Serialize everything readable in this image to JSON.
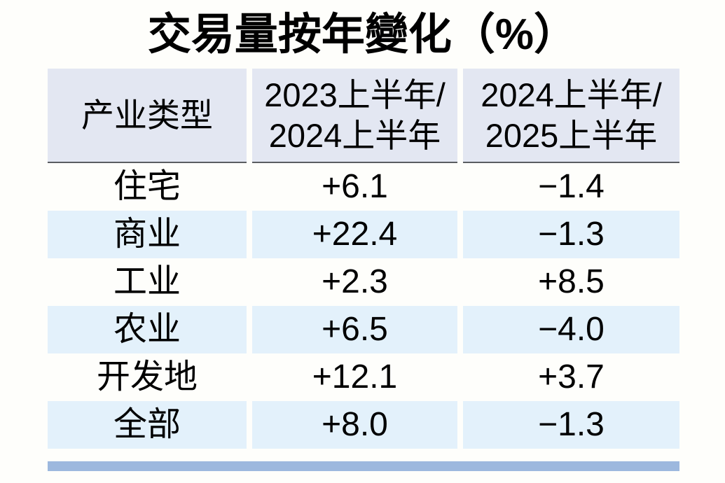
{
  "title": "交易量按年變化（%）",
  "colors": {
    "page_bg": "#fefefb",
    "text": "#000000",
    "header_bg": "#e3e7f2",
    "row_alt_bg": "#e3f1fb",
    "header_border": "#5a5d62",
    "bottom_bar": "#9db8de"
  },
  "table": {
    "header": {
      "col1": "产业类型",
      "col2_line1": "2023上半年/",
      "col2_line2": "2024上半年",
      "col3_line1": "2024上半年/",
      "col3_line2": "2025上半年"
    },
    "rows": [
      {
        "label": "住宅",
        "v1": "+6.1",
        "v2": "−1.4"
      },
      {
        "label": "商业",
        "v1": "+22.4",
        "v2": "−1.3"
      },
      {
        "label": "工业",
        "v1": "+2.3",
        "v2": "+8.5"
      },
      {
        "label": "农业",
        "v1": "+6.5",
        "v2": "−4.0"
      },
      {
        "label": "开发地",
        "v1": "+12.1",
        "v2": "+3.7"
      },
      {
        "label": "全部",
        "v1": "+8.0",
        "v2": "−1.3"
      }
    ]
  },
  "chart_data": {
    "type": "table",
    "title": "交易量按年變化（%）",
    "columns": [
      "产业类型",
      "2023上半年/2024上半年",
      "2024上半年/2025上半年"
    ],
    "rows": [
      {
        "category": "住宅",
        "yoy_2023h1_vs_2024h1": 6.1,
        "yoy_2024h1_vs_2025h1": -1.4
      },
      {
        "category": "商业",
        "yoy_2023h1_vs_2024h1": 22.4,
        "yoy_2024h1_vs_2025h1": -1.3
      },
      {
        "category": "工业",
        "yoy_2023h1_vs_2024h1": 2.3,
        "yoy_2024h1_vs_2025h1": 8.5
      },
      {
        "category": "农业",
        "yoy_2023h1_vs_2024h1": 6.5,
        "yoy_2024h1_vs_2025h1": -4.0
      },
      {
        "category": "开发地",
        "yoy_2023h1_vs_2024h1": 12.1,
        "yoy_2024h1_vs_2025h1": 3.7
      },
      {
        "category": "全部",
        "yoy_2023h1_vs_2024h1": 8.0,
        "yoy_2024h1_vs_2025h1": -1.3
      }
    ],
    "units": "percent",
    "layout": "striped rows, header row shaded with dark bottom rule, blue divider bar at bottom"
  }
}
